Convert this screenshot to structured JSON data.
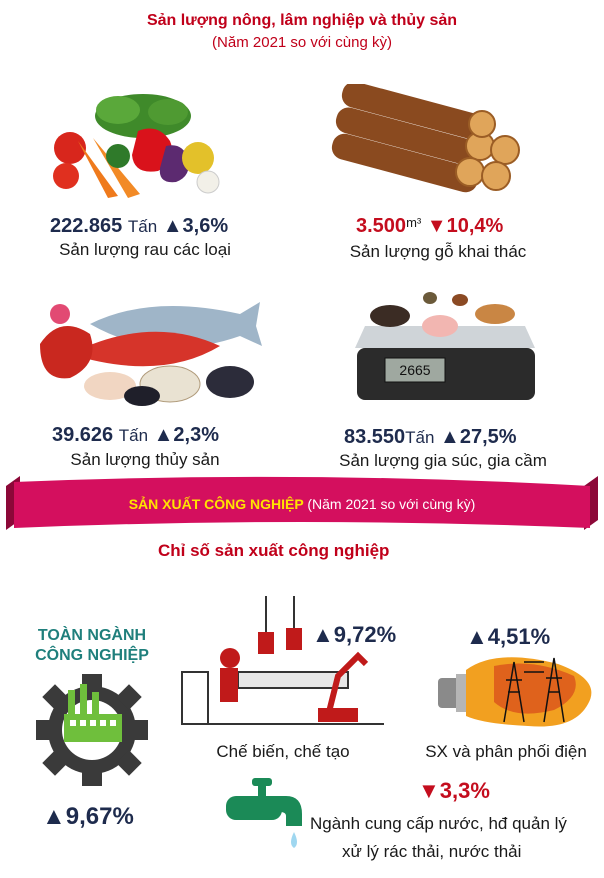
{
  "header": {
    "title": "Sản lượng nông, lâm nghiệp và thủy sản",
    "subtitle": "(Năm 2021 so với cùng kỳ)"
  },
  "agri": [
    {
      "value": "222.865",
      "unit": "Tấn",
      "change": "3,6%",
      "direction": "up",
      "label": "Sản lượng rau các loại",
      "icon": "vegetables-icon"
    },
    {
      "value": "3.500",
      "unit": "m³",
      "change": "10,4%",
      "direction": "down",
      "label": "Sản lượng gỗ khai thác",
      "icon": "timber-logs-icon"
    },
    {
      "value": "39.626",
      "unit": "Tấn",
      "change": "2,3%",
      "direction": "up",
      "label": "Sản lượng thủy sản",
      "icon": "seafood-icon"
    },
    {
      "value": "83.550",
      "unit": "Tấn",
      "change": "27,5%",
      "direction": "up",
      "label": "Sản lượng gia súc, gia cầm",
      "icon": "livestock-scale-icon"
    }
  ],
  "scale_display": "2665",
  "ribbon": {
    "title": "SẢN XUẤT CÔNG NGHIỆP",
    "subtitle": "(Năm 2021 so với cùng kỳ)"
  },
  "industry": {
    "heading": "Chỉ số sản xuất công nghiệp",
    "total_label_line1": "TOÀN NGÀNH",
    "total_label_line2": "CÔNG NGHIỆP",
    "total_change": "9,67%",
    "total_direction": "up",
    "items": [
      {
        "change": "9,72%",
        "direction": "up",
        "label": "Chế biến, chế tạo",
        "icon": "factory-robot-arm-icon"
      },
      {
        "change": "4,51%",
        "direction": "up",
        "label": "SX và phân phối điện",
        "icon": "lightbulb-power-tower-icon"
      },
      {
        "change": "3,3%",
        "direction": "down",
        "label_line1": "Ngành cung cấp nước, hđ quản lý",
        "label_line2": "xử lý rác thải, nước thải",
        "icon": "water-tap-icon"
      }
    ]
  },
  "colors": {
    "title_red": "#c0001a",
    "up_navy": "#1e2b4d",
    "down_red": "#c40d1e",
    "ribbon_magenta": "#d40f5e",
    "ribbon_yellow": "#ffe400",
    "teal": "#1f7f7c",
    "gear_dark": "#3a3a3a",
    "factory_green": "#6fbf3c"
  }
}
